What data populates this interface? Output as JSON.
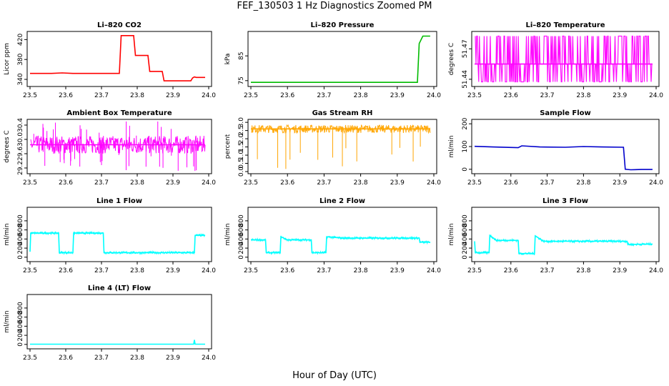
{
  "figure": {
    "title": "FEF_130503  1 Hz Diagnostics Zoomed PM",
    "xlabel": "Hour of Day (UTC)"
  },
  "chart_data": [
    {
      "type": "line",
      "title": "Li–820 CO2",
      "ylabel": "Licor ppm",
      "color": "#ff0000",
      "xlim": [
        23.5,
        24.0
      ],
      "xticks": [
        "23.5",
        "23.6",
        "23.7",
        "23.8",
        "23.9",
        "24.0"
      ],
      "ylim": [
        330,
        432
      ],
      "yticks": [
        "340",
        "380",
        "420"
      ],
      "ytick_values": [
        340,
        380,
        420
      ],
      "x": [
        23.5,
        23.52,
        23.56,
        23.59,
        23.62,
        23.66,
        23.7,
        23.75,
        23.755,
        23.79,
        23.795,
        23.83,
        23.835,
        23.87,
        23.875,
        23.95,
        23.955,
        23.96,
        23.965,
        23.99
      ],
      "y": [
        352,
        352,
        352,
        353,
        352,
        352,
        352,
        352,
        428,
        428,
        388,
        388,
        356,
        356,
        337,
        337,
        343,
        345,
        344,
        344
      ]
    },
    {
      "type": "line",
      "title": "Li–820 Pressure",
      "ylabel": "kPa",
      "color": "#00bb00",
      "xlim": [
        23.5,
        24.0
      ],
      "xticks": [
        "23.5",
        "23.6",
        "23.7",
        "23.8",
        "23.9",
        "24.0"
      ],
      "ylim": [
        73.5,
        94
      ],
      "yticks": [
        "75",
        "85"
      ],
      "ytick_values": [
        75,
        85
      ],
      "x": [
        23.5,
        23.6,
        23.7,
        23.8,
        23.9,
        23.94,
        23.955,
        23.96,
        23.97,
        23.99
      ],
      "y": [
        74.3,
        74.3,
        74.3,
        74.3,
        74.3,
        74.3,
        74.3,
        90,
        93,
        93
      ]
    },
    {
      "type": "line",
      "title": "Li–820 Temperature",
      "ylabel": "degrees C",
      "color": "#ff00ff",
      "xlim": [
        23.5,
        24.0
      ],
      "xticks": [
        "23.5",
        "23.6",
        "23.7",
        "23.8",
        "23.9",
        "24.0"
      ],
      "ylim": [
        51.435,
        51.485
      ],
      "yticks": [
        "51.44",
        "51.47"
      ],
      "ytick_values": [
        51.44,
        51.47
      ],
      "x": [
        23.5,
        23.6,
        23.7,
        23.8,
        23.9,
        23.99
      ],
      "y": [
        51.455,
        51.455,
        51.455,
        51.455,
        51.455,
        51.455
      ]
    },
    {
      "type": "line",
      "title": "Ambient Box Temperature",
      "ylabel": "degrees C",
      "color": "#ff00ff",
      "xlim": [
        23.5,
        24.0
      ],
      "xticks": [
        "23.5",
        "23.6",
        "23.7",
        "23.8",
        "23.9",
        "24.0"
      ],
      "ylim": [
        29.1,
        30.5
      ],
      "yticks": [
        "29.2",
        "29.6",
        "30.0",
        "30.4"
      ],
      "ytick_values": [
        29.2,
        29.6,
        30.0,
        30.4
      ],
      "x": [
        23.5,
        23.6,
        23.7,
        23.8,
        23.9,
        23.99
      ],
      "y": [
        29.85,
        29.85,
        29.85,
        29.85,
        29.85,
        29.85
      ]
    },
    {
      "type": "line",
      "title": "Gas Stream RH",
      "ylabel": "percent",
      "color": "#ffa500",
      "xlim": [
        23.5,
        24.0
      ],
      "xticks": [
        "23.5",
        "23.6",
        "23.7",
        "23.8",
        "23.9",
        "24.0"
      ],
      "ylim": [
        0,
        3.05
      ],
      "yticks": [
        "0.0",
        "0.5",
        "1.0",
        "1.5",
        "2.0",
        "2.5",
        "3.0"
      ],
      "ytick_values": [
        0,
        0.5,
        1.0,
        1.5,
        2.0,
        2.5,
        3.0
      ],
      "x": [
        23.5,
        23.6,
        23.7,
        23.8,
        23.9,
        23.99
      ],
      "y": [
        2.6,
        2.6,
        2.6,
        2.6,
        2.6,
        2.6
      ]
    },
    {
      "type": "line",
      "title": "Sample Flow",
      "ylabel": "ml/min",
      "color": "#0000cc",
      "xlim": [
        23.5,
        24.0
      ],
      "xticks": [
        "23.5",
        "23.6",
        "23.7",
        "23.8",
        "23.9",
        "24.0"
      ],
      "ylim": [
        -10,
        210
      ],
      "yticks": [
        "0",
        "100",
        "200"
      ],
      "ytick_values": [
        0,
        100,
        200
      ],
      "x": [
        23.5,
        23.55,
        23.62,
        23.63,
        23.68,
        23.75,
        23.8,
        23.85,
        23.91,
        23.915,
        23.93,
        23.96,
        23.99
      ],
      "y": [
        101,
        98,
        95,
        103,
        98,
        97,
        100,
        98,
        97,
        0,
        -2,
        -1,
        -1
      ]
    },
    {
      "type": "line",
      "title": "Line 1 Flow",
      "ylabel": "ml/min",
      "color": "#00ffff",
      "xlim": [
        23.5,
        24.0
      ],
      "xticks": [
        "23.5",
        "23.6",
        "23.7",
        "23.8",
        "23.9",
        "24.0"
      ],
      "ylim": [
        -50,
        1050
      ],
      "yticks": [
        "0",
        "200",
        "400",
        "600",
        "800"
      ],
      "ytick_values": [
        0,
        200,
        400,
        600,
        800
      ],
      "x": [
        23.5,
        23.502,
        23.58,
        23.582,
        23.62,
        23.622,
        23.705,
        23.707,
        23.96,
        23.962,
        23.99
      ],
      "y": [
        120,
        530,
        530,
        100,
        100,
        530,
        530,
        100,
        100,
        480,
        480
      ]
    },
    {
      "type": "line",
      "title": "Line 2 Flow",
      "ylabel": "ml/min",
      "color": "#00ffff",
      "xlim": [
        23.5,
        24.0
      ],
      "xticks": [
        "23.5",
        "23.6",
        "23.7",
        "23.8",
        "23.9",
        "24.0"
      ],
      "ylim": [
        -50,
        1050
      ],
      "yticks": [
        "0",
        "200",
        "400",
        "600",
        "800"
      ],
      "ytick_values": [
        0,
        200,
        400,
        600,
        800
      ],
      "x": [
        23.5,
        23.54,
        23.542,
        23.58,
        23.582,
        23.6,
        23.63,
        23.665,
        23.667,
        23.705,
        23.707,
        23.75,
        23.96,
        23.962,
        23.99
      ],
      "y": [
        380,
        380,
        100,
        100,
        450,
        380,
        380,
        380,
        100,
        100,
        450,
        420,
        420,
        330,
        330
      ]
    },
    {
      "type": "line",
      "title": "Line 3 Flow",
      "ylabel": "ml/min",
      "color": "#00ffff",
      "xlim": [
        23.5,
        24.0
      ],
      "xticks": [
        "23.5",
        "23.6",
        "23.7",
        "23.8",
        "23.9",
        "24.0"
      ],
      "ylim": [
        -50,
        1050
      ],
      "yticks": [
        "0",
        "200",
        "400",
        "600",
        "800"
      ],
      "ytick_values": [
        0,
        200,
        400,
        600,
        800
      ],
      "x": [
        23.5,
        23.502,
        23.54,
        23.542,
        23.56,
        23.62,
        23.622,
        23.665,
        23.667,
        23.69,
        23.75,
        23.92,
        23.922,
        23.99
      ],
      "y": [
        350,
        100,
        100,
        480,
        370,
        370,
        80,
        80,
        470,
        350,
        350,
        350,
        280,
        290
      ]
    },
    {
      "type": "line",
      "title": "Line 4 (LT) Flow",
      "ylabel": "ml/min",
      "color": "#00ffff",
      "xlim": [
        23.5,
        24.0
      ],
      "xticks": [
        "23.5",
        "23.6",
        "23.7",
        "23.8",
        "23.9",
        "24.0"
      ],
      "ylim": [
        -50,
        1050
      ],
      "yticks": [
        "0",
        "200",
        "400",
        "600",
        "800"
      ],
      "ytick_values": [
        0,
        200,
        400,
        600,
        800
      ],
      "x": [
        23.5,
        23.7,
        23.958,
        23.96,
        23.962,
        23.99
      ],
      "y": [
        5,
        5,
        5,
        100,
        5,
        5
      ]
    }
  ]
}
